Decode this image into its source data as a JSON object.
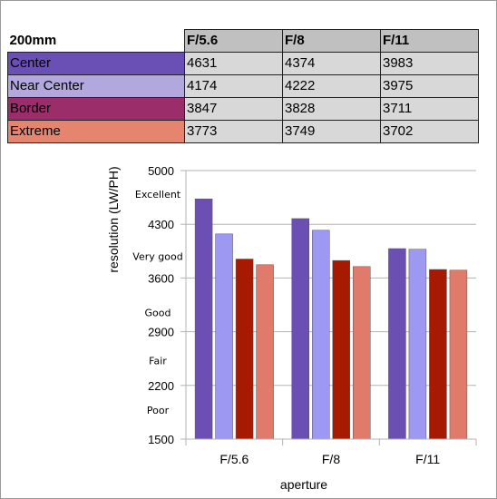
{
  "table": {
    "focal_label": "200mm",
    "apertures": [
      "F/5.6",
      "F/8",
      "F/11"
    ],
    "rows": [
      {
        "label": "Center",
        "color": "#6a4fb5",
        "values": [
          4631,
          4374,
          3983
        ]
      },
      {
        "label": "Near Center",
        "color": "#b3a8dd",
        "values": [
          4174,
          4222,
          3975
        ]
      },
      {
        "label": "Border",
        "color": "#9b2d6a",
        "values": [
          3847,
          3828,
          3711
        ]
      },
      {
        "label": "Extreme",
        "color": "#e58570",
        "values": [
          3773,
          3749,
          3702
        ]
      }
    ]
  },
  "chart_data": {
    "type": "bar",
    "categories": [
      "F/5.6",
      "F/8",
      "F/11"
    ],
    "series": [
      {
        "values": [
          4631,
          4374,
          3983
        ],
        "color": "#6c4fb3"
      },
      {
        "values": [
          4174,
          4222,
          3975
        ],
        "color": "#9d99f2"
      },
      {
        "values": [
          3847,
          3828,
          3711
        ],
        "color": "#a51a00"
      },
      {
        "values": [
          3773,
          3749,
          3702
        ],
        "color": "#e07a6b"
      }
    ],
    "xlabel": "aperture",
    "ylabel": "resolution (LW/PH)",
    "ylim": [
      1500,
      5000
    ],
    "yticks": [
      1500,
      2200,
      2900,
      3600,
      4300,
      5000
    ],
    "grid": true,
    "quality_labels": [
      {
        "text": "Excellent",
        "value": 4690
      },
      {
        "text": "Very good",
        "value": 3880
      },
      {
        "text": "Good",
        "value": 3150
      },
      {
        "text": "Fair",
        "value": 2520
      },
      {
        "text": "Poor",
        "value": 1880
      }
    ]
  }
}
